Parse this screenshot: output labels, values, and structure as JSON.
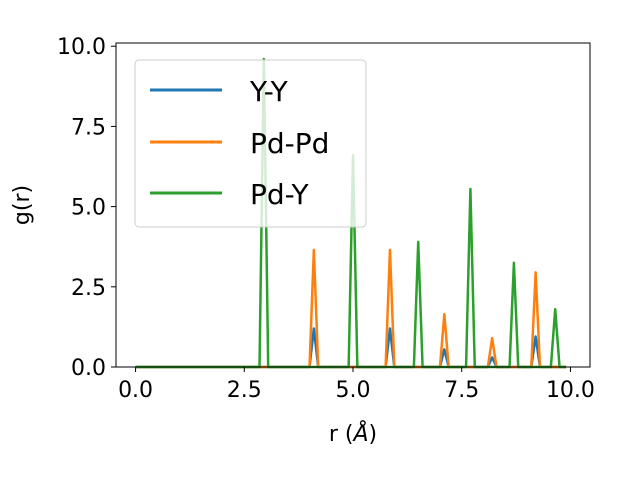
{
  "chart_data": {
    "type": "line",
    "xlabel": "r (",
    "xlabel_symbol": "Å",
    "xlabel_close": ")",
    "ylabel": "g(r)",
    "xlim": [
      -0.45,
      10.45
    ],
    "ylim": [
      0,
      10.1
    ],
    "xticks": [
      0.0,
      2.5,
      5.0,
      7.5,
      10.0
    ],
    "xtick_labels": [
      "0.0",
      "2.5",
      "5.0",
      "7.5",
      "10.0"
    ],
    "yticks": [
      0.0,
      2.5,
      5.0,
      7.5,
      10.0
    ],
    "ytick_labels": [
      "0.0",
      "2.5",
      "5.0",
      "7.5",
      "10.0"
    ],
    "grid": false,
    "legend_position": "upper-left",
    "series": [
      {
        "name": "Y-Y",
        "color": "#1f77b4",
        "x": [
          0.0,
          4.0,
          4.1,
          4.2,
          5.75,
          5.85,
          5.95,
          7.0,
          7.1,
          7.2,
          8.1,
          8.2,
          8.3,
          9.1,
          9.2,
          9.3,
          9.9
        ],
        "y": [
          0.0,
          0.0,
          1.2,
          0.0,
          0.0,
          1.2,
          0.0,
          0.0,
          0.55,
          0.0,
          0.0,
          0.3,
          0.0,
          0.0,
          0.95,
          0.0,
          0.0
        ]
      },
      {
        "name": "Pd-Pd",
        "color": "#ff7f0e",
        "x": [
          0.0,
          4.0,
          4.1,
          4.2,
          5.75,
          5.85,
          5.95,
          7.0,
          7.1,
          7.2,
          8.1,
          8.2,
          8.3,
          9.1,
          9.2,
          9.3,
          9.9
        ],
        "y": [
          0.0,
          0.0,
          3.65,
          0.0,
          0.0,
          3.65,
          0.0,
          0.0,
          1.65,
          0.0,
          0.0,
          0.9,
          0.0,
          0.0,
          2.95,
          0.0,
          0.0
        ]
      },
      {
        "name": "Pd-Y",
        "color": "#2ca02c",
        "x": [
          0.0,
          2.85,
          2.95,
          3.05,
          4.9,
          5.0,
          5.1,
          6.4,
          6.5,
          6.6,
          7.6,
          7.7,
          7.8,
          8.6,
          8.7,
          8.8,
          9.55,
          9.65,
          9.75,
          9.9
        ],
        "y": [
          0.0,
          0.0,
          9.6,
          0.0,
          0.0,
          6.6,
          0.0,
          0.0,
          3.9,
          0.0,
          0.0,
          5.55,
          0.0,
          0.0,
          3.25,
          0.0,
          0.0,
          1.8,
          0.0,
          0.0
        ]
      }
    ]
  }
}
